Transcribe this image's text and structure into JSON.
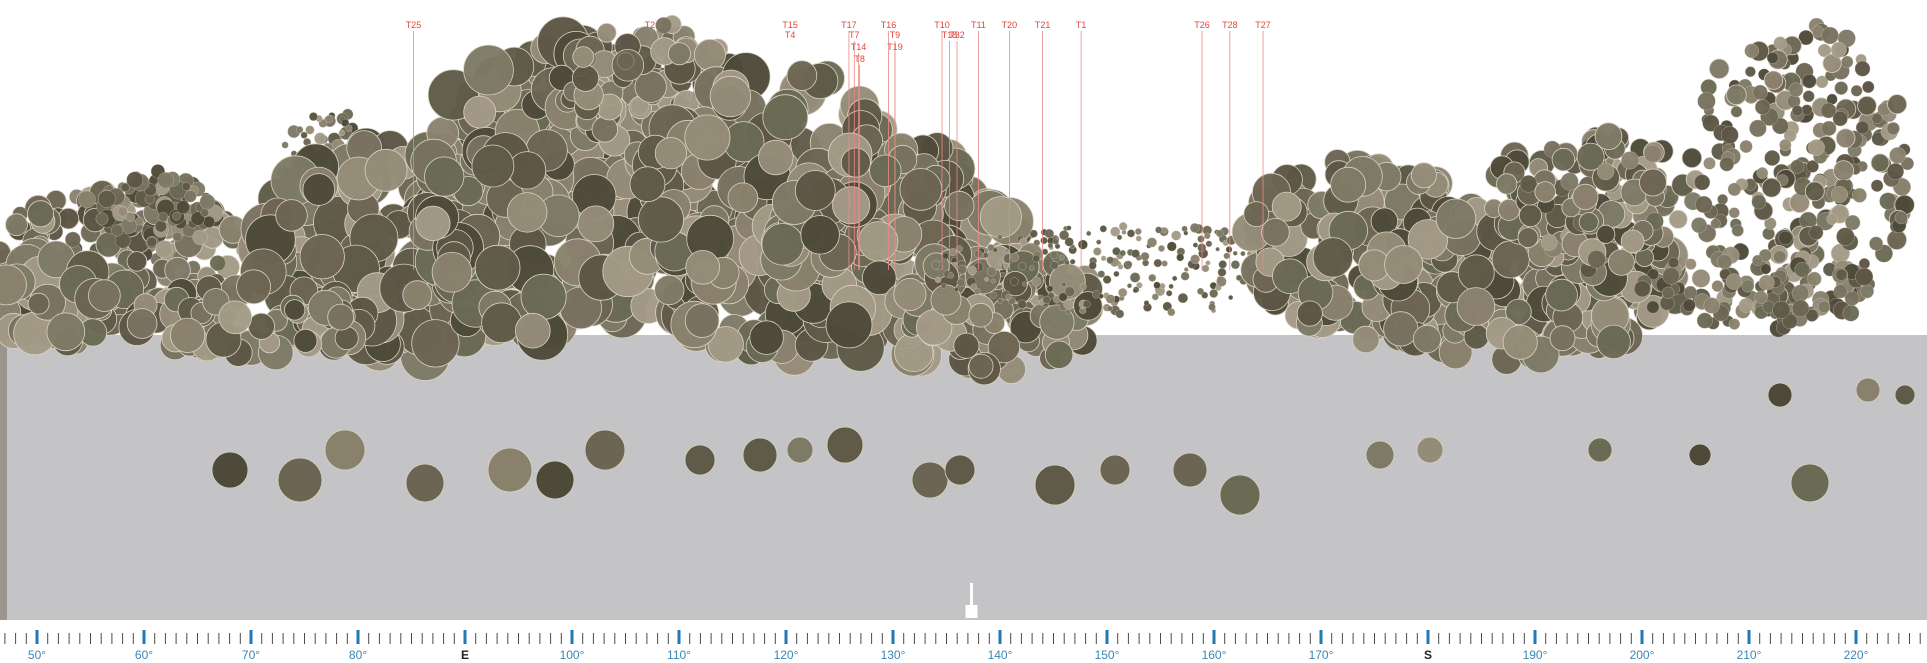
{
  "panorama": {
    "ground_color": "#c4c3c6",
    "sky_color": "#ffffff",
    "foliage_colors": [
      "#7a7260",
      "#6d6553",
      "#8a816d",
      "#5d5645",
      "#958c78",
      "#6a6a55",
      "#4e4a3a",
      "#a39a86",
      "#7d7a66",
      "#5f5b48"
    ],
    "tree_labels": [
      {
        "label": "T25",
        "deg": 83.5,
        "line": true
      },
      {
        "label": "T2",
        "deg": 105.6,
        "line": false
      },
      {
        "label": "T15",
        "deg": 118.7,
        "line": false
      },
      {
        "label": "T4",
        "deg": 118.7,
        "line": false
      },
      {
        "label": "T17",
        "deg": 124.2,
        "line": true
      },
      {
        "label": "T7",
        "deg": 124.7,
        "line": true
      },
      {
        "label": "T14",
        "deg": 125.1,
        "line": true
      },
      {
        "label": "T8",
        "deg": 125.2,
        "line": true
      },
      {
        "label": "T16",
        "deg": 127.9,
        "line": true
      },
      {
        "label": "T9",
        "deg": 128.5,
        "line": true
      },
      {
        "label": "T19",
        "deg": 128.5,
        "line": true
      },
      {
        "label": "T10",
        "deg": 132.9,
        "line": true
      },
      {
        "label": "T18",
        "deg": 133.6,
        "line": true
      },
      {
        "label": "T32",
        "deg": 134.3,
        "line": true
      },
      {
        "label": "T11",
        "deg": 136.3,
        "line": true
      },
      {
        "label": "T20",
        "deg": 139.2,
        "line": true
      },
      {
        "label": "T21",
        "deg": 142.3,
        "line": true
      },
      {
        "label": "T1",
        "deg": 145.9,
        "line": true
      },
      {
        "label": "T26",
        "deg": 157.2,
        "line": true
      },
      {
        "label": "T28",
        "deg": 159.8,
        "line": true
      },
      {
        "label": "T27",
        "deg": 162.9,
        "line": true
      }
    ]
  },
  "compass": {
    "accent": "#1f7ab8",
    "pointer_deg": 135,
    "ticks": [
      {
        "deg": 50,
        "label": "50°"
      },
      {
        "deg": 60,
        "label": "60°"
      },
      {
        "deg": 70,
        "label": "70°"
      },
      {
        "deg": 80,
        "label": "80°"
      },
      {
        "deg": 90,
        "label": "E"
      },
      {
        "deg": 100,
        "label": "100°"
      },
      {
        "deg": 110,
        "label": "110°"
      },
      {
        "deg": 120,
        "label": "120°"
      },
      {
        "deg": 130,
        "label": "130°"
      },
      {
        "deg": 140,
        "label": "140°"
      },
      {
        "deg": 150,
        "label": "150°"
      },
      {
        "deg": 160,
        "label": "160°"
      },
      {
        "deg": 170,
        "label": "170°"
      },
      {
        "deg": 180,
        "label": "S"
      },
      {
        "deg": 190,
        "label": "190°"
      },
      {
        "deg": 200,
        "label": "200°"
      },
      {
        "deg": 210,
        "label": "210°"
      },
      {
        "deg": 220,
        "label": "220°"
      }
    ]
  }
}
